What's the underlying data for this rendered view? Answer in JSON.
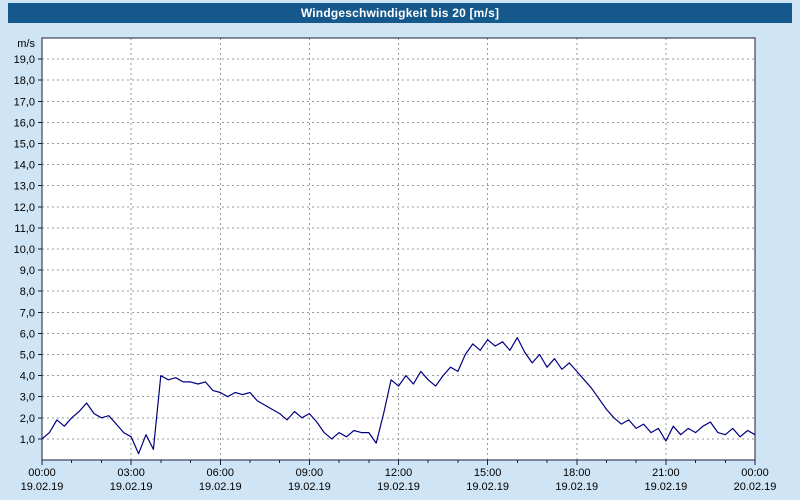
{
  "title_bar": {
    "title": "Windgeschwindigkeit bis 20 [m/s]"
  },
  "chart_data": {
    "type": "line",
    "title": "Windgeschwindigkeit bis 20 [m/s]",
    "unit": "m/s",
    "ylim": [
      0,
      20
    ],
    "ytick_values": [
      1,
      2,
      3,
      4,
      5,
      6,
      7,
      8,
      9,
      10,
      11,
      12,
      13,
      14,
      15,
      16,
      17,
      18,
      19
    ],
    "ytick_labels": [
      "1,0",
      "2,0",
      "3,0",
      "4,0",
      "5,0",
      "6,0",
      "7,0",
      "8,0",
      "9,0",
      "10,0",
      "11,0",
      "12,0",
      "13,0",
      "14,0",
      "15,0",
      "16,0",
      "17,0",
      "18,0",
      "19,0"
    ],
    "x_range": [
      0,
      24
    ],
    "grid": true,
    "legend": "none",
    "xticks": [
      {
        "hour": 0,
        "time": "00:00",
        "date": "19.02.19"
      },
      {
        "hour": 3,
        "time": "03:00",
        "date": "19.02.19"
      },
      {
        "hour": 6,
        "time": "06:00",
        "date": "19.02.19"
      },
      {
        "hour": 9,
        "time": "09:00",
        "date": "19.02.19"
      },
      {
        "hour": 12,
        "time": "12:00",
        "date": "19.02.19"
      },
      {
        "hour": 15,
        "time": "15:00",
        "date": "19.02.19"
      },
      {
        "hour": 18,
        "time": "18:00",
        "date": "19.02.19"
      },
      {
        "hour": 21,
        "time": "21:00",
        "date": "19.02.19"
      },
      {
        "hour": 24,
        "time": "00:00",
        "date": "20.02.19"
      }
    ],
    "series": [
      {
        "name": "Windgeschwindigkeit",
        "color": "#000080",
        "x": [
          0,
          0.25,
          0.5,
          0.75,
          1,
          1.25,
          1.5,
          1.75,
          2,
          2.25,
          2.5,
          2.75,
          3,
          3.25,
          3.5,
          3.75,
          4,
          4.25,
          4.5,
          4.75,
          5,
          5.25,
          5.5,
          5.75,
          6,
          6.25,
          6.5,
          6.75,
          7,
          7.25,
          7.5,
          7.75,
          8,
          8.25,
          8.5,
          8.75,
          9,
          9.25,
          9.5,
          9.75,
          10,
          10.25,
          10.5,
          10.75,
          11,
          11.25,
          11.5,
          11.75,
          12,
          12.25,
          12.5,
          12.75,
          13,
          13.25,
          13.5,
          13.75,
          14,
          14.25,
          14.5,
          14.75,
          15,
          15.25,
          15.5,
          15.75,
          16,
          16.25,
          16.5,
          16.75,
          17,
          17.25,
          17.5,
          17.75,
          18,
          18.25,
          18.5,
          18.75,
          19,
          19.25,
          19.5,
          19.75,
          20,
          20.25,
          20.5,
          20.75,
          21,
          21.25,
          21.5,
          21.75,
          22,
          22.25,
          22.5,
          22.75,
          23,
          23.25,
          23.5,
          23.75,
          24
        ],
        "values": [
          1.0,
          1.3,
          1.9,
          1.6,
          2.0,
          2.3,
          2.7,
          2.2,
          2.0,
          2.1,
          1.7,
          1.3,
          1.1,
          0.3,
          1.2,
          0.5,
          4.0,
          3.8,
          3.9,
          3.7,
          3.7,
          3.6,
          3.7,
          3.3,
          3.2,
          3.0,
          3.2,
          3.1,
          3.2,
          2.8,
          2.6,
          2.4,
          2.2,
          1.9,
          2.3,
          2.0,
          2.2,
          1.8,
          1.3,
          1.0,
          1.3,
          1.1,
          1.4,
          1.3,
          1.3,
          0.8,
          2.2,
          3.8,
          3.5,
          4.0,
          3.6,
          4.2,
          3.8,
          3.5,
          4.0,
          4.4,
          4.2,
          5.0,
          5.5,
          5.2,
          5.7,
          5.4,
          5.6,
          5.2,
          5.8,
          5.1,
          4.6,
          5.0,
          4.4,
          4.8,
          4.3,
          4.6,
          4.2,
          3.8,
          3.4,
          2.9,
          2.4,
          2.0,
          1.7,
          1.9,
          1.5,
          1.7,
          1.3,
          1.5,
          0.9,
          1.6,
          1.2,
          1.5,
          1.3,
          1.6,
          1.8,
          1.3,
          1.2,
          1.5,
          1.1,
          1.4,
          1.2
        ]
      }
    ],
    "colors": {
      "line": "#000080",
      "grid": "#9a9a9a",
      "axis": "#1c1c3a",
      "text": "#000000",
      "plot_bg": "#ffffff",
      "page_bg": "#cfe4f5",
      "titlebar_bg": "#14588c",
      "titlebar_fg": "#ffffff"
    }
  }
}
